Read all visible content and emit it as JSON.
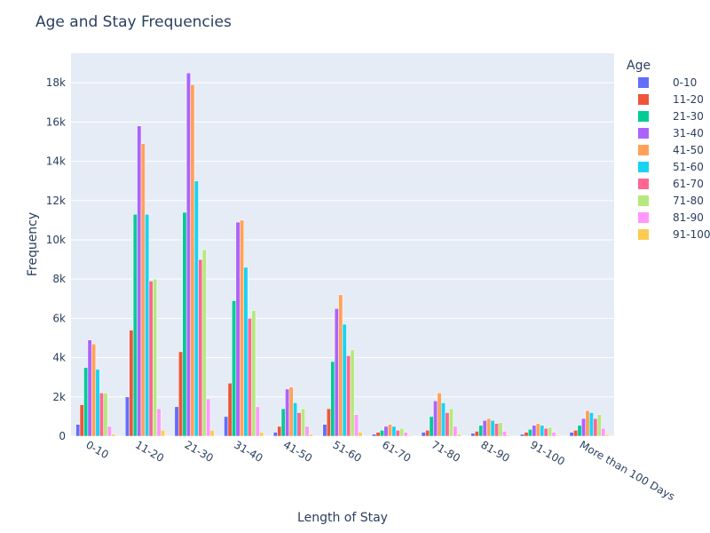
{
  "chart_data": {
    "type": "bar",
    "title": "Age and Stay Frequencies",
    "xlabel": "Length of Stay",
    "ylabel": "Frequency",
    "ylim": [
      0,
      19500
    ],
    "ytick_values": [
      0,
      2000,
      4000,
      6000,
      8000,
      10000,
      12000,
      14000,
      16000,
      18000
    ],
    "ytick_labels": [
      "0",
      "2k",
      "4k",
      "6k",
      "8k",
      "10k",
      "12k",
      "14k",
      "16k",
      "18k"
    ],
    "categories": [
      "0-10",
      "11-20",
      "21-30",
      "31-40",
      "41-50",
      "51-60",
      "61-70",
      "71-80",
      "81-90",
      "91-100",
      "More than 100 Days"
    ],
    "legend_title": "Age",
    "legend_position": "right",
    "grid": true,
    "series": [
      {
        "name": "0-10",
        "color": "#636efa",
        "values": [
          600,
          2000,
          1500,
          1000,
          200,
          600,
          100,
          200,
          150,
          100,
          200
        ]
      },
      {
        "name": "11-20",
        "color": "#EF553B",
        "values": [
          1600,
          5400,
          4300,
          2700,
          500,
          1400,
          200,
          300,
          250,
          200,
          300
        ]
      },
      {
        "name": "21-30",
        "color": "#00cc96",
        "values": [
          3500,
          11300,
          11400,
          6900,
          1400,
          3800,
          300,
          1000,
          550,
          350,
          550
        ]
      },
      {
        "name": "31-40",
        "color": "#ab63fa",
        "values": [
          4900,
          15800,
          18500,
          10900,
          2400,
          6500,
          500,
          1800,
          800,
          550,
          900
        ]
      },
      {
        "name": "41-50",
        "color": "#FFA15A",
        "values": [
          4700,
          14900,
          17900,
          11000,
          2500,
          7200,
          600,
          2200,
          900,
          650,
          1300
        ]
      },
      {
        "name": "51-60",
        "color": "#19d3f3",
        "values": [
          3400,
          11300,
          13000,
          8600,
          1700,
          5700,
          500,
          1700,
          800,
          550,
          1200
        ]
      },
      {
        "name": "61-70",
        "color": "#FF6692",
        "values": [
          2200,
          7900,
          9000,
          6000,
          1200,
          4100,
          300,
          1200,
          650,
          400,
          900
        ]
      },
      {
        "name": "71-80",
        "color": "#B6E880",
        "values": [
          2200,
          8000,
          9500,
          6400,
          1400,
          4400,
          400,
          1400,
          700,
          450,
          1100
        ]
      },
      {
        "name": "81-90",
        "color": "#FF97FF",
        "values": [
          500,
          1400,
          1900,
          1500,
          500,
          1100,
          200,
          500,
          250,
          200,
          400
        ]
      },
      {
        "name": "91-100",
        "color": "#FECB52",
        "values": [
          100,
          300,
          300,
          200,
          100,
          200,
          50,
          100,
          50,
          50,
          80
        ]
      }
    ]
  }
}
